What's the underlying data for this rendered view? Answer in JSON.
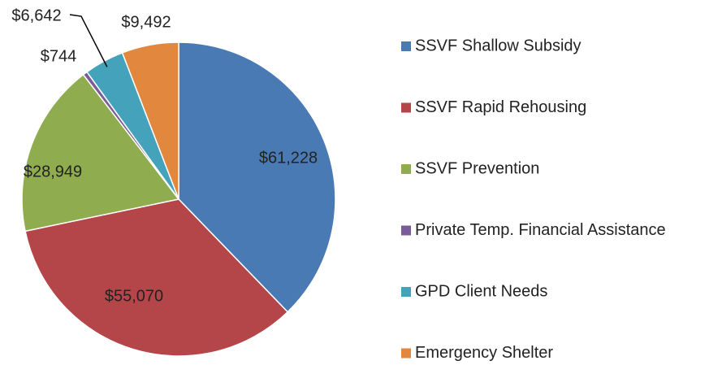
{
  "chart_data": {
    "type": "pie",
    "categories": [
      "SSVF Shallow Subsidy",
      "SSVF Rapid Rehousing",
      "SSVF Prevention",
      "Private Temp. Financial Assistance",
      "GPD Client Needs",
      "Emergency Shelter"
    ],
    "values": [
      61228,
      55070,
      28949,
      744,
      6642,
      9492
    ],
    "value_labels": [
      "$61,228",
      "$55,070",
      "$28,949",
      "$744",
      "$6,642",
      "$9,492"
    ],
    "colors": [
      "#4a7ab4",
      "#b4464a",
      "#8fac4e",
      "#7a5c9a",
      "#44a2bb",
      "#e2873e"
    ],
    "legend": "right"
  }
}
